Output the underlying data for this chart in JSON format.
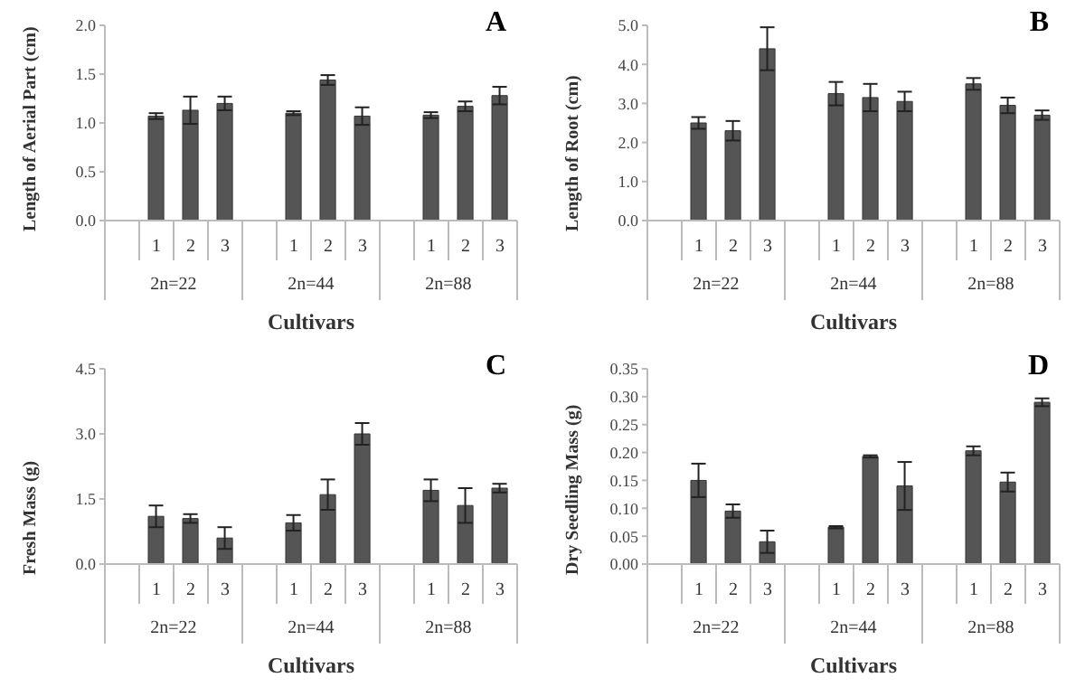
{
  "chart_data": [
    {
      "type": "bar",
      "title": "A",
      "xlabel": "Cultivars",
      "ylabel": "Length of Aerial Part  (cm)",
      "categories": [
        null,
        "1",
        "2",
        "3",
        null,
        "1",
        "2",
        "3",
        null,
        "1",
        "2",
        "3"
      ],
      "series": [
        {
          "color": "#555555",
          "values": [
            null,
            1.07,
            1.13,
            1.2,
            null,
            1.1,
            1.44,
            1.07,
            null,
            1.08,
            1.17,
            1.28
          ],
          "errors": [
            null,
            0.03,
            0.14,
            0.07,
            null,
            0.02,
            0.05,
            0.09,
            null,
            0.03,
            0.05,
            0.09
          ]
        }
      ],
      "annotations": [
        "2n=22",
        "2n=44",
        "2n=88"
      ],
      "ylim": [
        0,
        2
      ],
      "yticks": [
        {
          "value": 0,
          "label": "0.0"
        },
        {
          "value": 0.5,
          "label": "0.5"
        },
        {
          "value": 1,
          "label": "1.0"
        },
        {
          "value": 1.5,
          "label": "1.5"
        },
        {
          "value": 2,
          "label": "2.0"
        }
      ],
      "grid": false,
      "legend": false
    },
    {
      "type": "bar",
      "title": "B",
      "xlabel": "Cultivars",
      "ylabel": "Length of Root  (cm)",
      "categories": [
        null,
        "1",
        "2",
        "3",
        null,
        "1",
        "2",
        "3",
        null,
        "1",
        "2",
        "3"
      ],
      "series": [
        {
          "color": "#555555",
          "values": [
            null,
            2.5,
            2.3,
            4.4,
            null,
            3.25,
            3.15,
            3.05,
            null,
            3.5,
            2.95,
            2.7
          ],
          "errors": [
            null,
            0.15,
            0.25,
            0.55,
            null,
            0.3,
            0.35,
            0.25,
            null,
            0.15,
            0.2,
            0.12
          ]
        }
      ],
      "annotations": [
        "2n=22",
        "2n=44",
        "2n=88"
      ],
      "ylim": [
        0,
        5
      ],
      "yticks": [
        {
          "value": 0,
          "label": "0.0"
        },
        {
          "value": 1,
          "label": "1.0"
        },
        {
          "value": 2,
          "label": "2.0"
        },
        {
          "value": 3,
          "label": "3.0"
        },
        {
          "value": 4,
          "label": "4.0"
        },
        {
          "value": 5,
          "label": "5.0"
        }
      ],
      "grid": false,
      "legend": false
    },
    {
      "type": "bar",
      "title": "C",
      "xlabel": "Cultivars",
      "ylabel": "Fresh Mass  (g)",
      "categories": [
        null,
        "1",
        "2",
        "3",
        null,
        "1",
        "2",
        "3",
        null,
        "1",
        "2",
        "3"
      ],
      "series": [
        {
          "color": "#555555",
          "values": [
            null,
            1.1,
            1.05,
            0.6,
            null,
            0.95,
            1.6,
            3.0,
            null,
            1.7,
            1.35,
            1.75
          ],
          "errors": [
            null,
            0.25,
            0.1,
            0.25,
            null,
            0.18,
            0.35,
            0.25,
            null,
            0.25,
            0.4,
            0.1
          ]
        }
      ],
      "annotations": [
        "2n=22",
        "2n=44",
        "2n=88"
      ],
      "ylim": [
        0,
        4.5
      ],
      "yticks": [
        {
          "value": 0,
          "label": "0.0"
        },
        {
          "value": 1.5,
          "label": "1.5"
        },
        {
          "value": 3,
          "label": "3.0"
        },
        {
          "value": 4.5,
          "label": "4.5"
        }
      ],
      "grid": false,
      "legend": false
    },
    {
      "type": "bar",
      "title": "D",
      "xlabel": "Cultivars",
      "ylabel": "Dry Seedling Mass (g)",
      "categories": [
        null,
        "1",
        "2",
        "3",
        null,
        "1",
        "2",
        "3",
        null,
        "1",
        "2",
        "3"
      ],
      "series": [
        {
          "color": "#555555",
          "values": [
            null,
            0.15,
            0.095,
            0.04,
            null,
            0.066,
            0.193,
            0.14,
            null,
            0.203,
            0.147,
            0.29
          ],
          "errors": [
            null,
            0.03,
            0.012,
            0.02,
            null,
            0.002,
            0.002,
            0.043,
            null,
            0.008,
            0.017,
            0.007
          ]
        }
      ],
      "annotations": [
        "2n=22",
        "2n=44",
        "2n=88"
      ],
      "ylim": [
        0,
        0.35
      ],
      "yticks": [
        {
          "value": 0,
          "label": "0.00"
        },
        {
          "value": 0.05,
          "label": "0.05"
        },
        {
          "value": 0.1,
          "label": "0.10"
        },
        {
          "value": 0.15,
          "label": "0.15"
        },
        {
          "value": 0.2,
          "label": "0.20"
        },
        {
          "value": 0.25,
          "label": "0.25"
        },
        {
          "value": 0.3,
          "label": "0.30"
        },
        {
          "value": 0.35,
          "label": "0.35"
        }
      ],
      "grid": false,
      "legend": false
    }
  ]
}
